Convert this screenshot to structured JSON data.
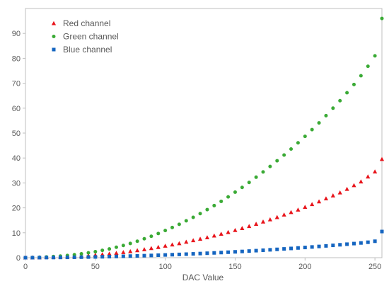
{
  "chart_data": {
    "type": "scatter",
    "title": "",
    "xlabel": "DAC Value",
    "ylabel": "",
    "xlim": [
      0,
      255
    ],
    "ylim": [
      0,
      100
    ],
    "xticks": [
      0,
      50,
      100,
      150,
      200,
      250
    ],
    "yticks": [
      0,
      10,
      20,
      30,
      40,
      50,
      60,
      70,
      80,
      90
    ],
    "grid": false,
    "legend_position": "top-left",
    "x": [
      0,
      5,
      10,
      15,
      20,
      25,
      30,
      35,
      40,
      45,
      50,
      55,
      60,
      65,
      70,
      75,
      80,
      85,
      90,
      95,
      100,
      105,
      110,
      115,
      120,
      125,
      130,
      135,
      140,
      145,
      150,
      155,
      160,
      165,
      170,
      175,
      180,
      185,
      190,
      195,
      200,
      205,
      210,
      215,
      220,
      225,
      230,
      235,
      240,
      245,
      250,
      255
    ],
    "series": [
      {
        "name": "Red channel",
        "marker": "triangle",
        "color": "#e8141b",
        "values": [
          0,
          0.03,
          0.07,
          0.12,
          0.2,
          0.3,
          0.4,
          0.5,
          0.65,
          0.85,
          1.05,
          1.3,
          1.55,
          1.85,
          2.15,
          2.5,
          2.9,
          3.3,
          3.75,
          4.2,
          4.7,
          5.2,
          5.7,
          6.3,
          6.9,
          7.5,
          8.1,
          8.8,
          9.5,
          10.2,
          11,
          11.8,
          12.6,
          13.5,
          14.4,
          15.3,
          16.2,
          17.2,
          18.2,
          19.2,
          20.3,
          21.4,
          22.5,
          23.7,
          24.9,
          26.1,
          27.5,
          29,
          30.5,
          32.5,
          34.5,
          39.5
        ]
      },
      {
        "name": "Green channel",
        "marker": "circle",
        "color": "#3aaa35",
        "values": [
          0,
          0.07,
          0.15,
          0.3,
          0.45,
          0.65,
          0.9,
          1.2,
          1.55,
          1.95,
          2.4,
          2.95,
          3.5,
          4.2,
          4.9,
          5.7,
          6.6,
          7.6,
          8.6,
          9.7,
          10.9,
          12.1,
          13.4,
          14.8,
          16.2,
          17.7,
          19.3,
          20.9,
          22.6,
          24.4,
          26.3,
          28.2,
          30.2,
          32.3,
          34.4,
          36.6,
          38.9,
          41.2,
          43.6,
          46.1,
          48.7,
          51.4,
          54.1,
          57,
          60,
          63,
          66.2,
          69.5,
          73,
          76.8,
          81,
          96
        ]
      },
      {
        "name": "Blue channel",
        "marker": "square",
        "color": "#1565c0",
        "values": [
          0,
          0.01,
          0.02,
          0.04,
          0.06,
          0.09,
          0.12,
          0.16,
          0.2,
          0.25,
          0.3,
          0.36,
          0.42,
          0.49,
          0.56,
          0.64,
          0.72,
          0.81,
          0.9,
          1,
          1.1,
          1.2,
          1.31,
          1.42,
          1.54,
          1.66,
          1.79,
          1.92,
          2.06,
          2.2,
          2.35,
          2.5,
          2.66,
          2.82,
          2.99,
          3.16,
          3.34,
          3.52,
          3.71,
          3.9,
          4.1,
          4.3,
          4.51,
          4.73,
          4.95,
          5.18,
          5.42,
          5.66,
          5.91,
          6.2,
          6.6,
          10.5
        ]
      }
    ]
  }
}
